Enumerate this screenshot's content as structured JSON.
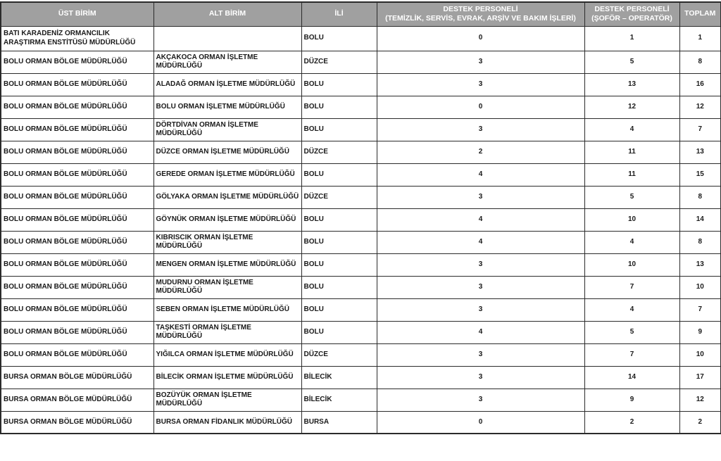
{
  "colors": {
    "header_bg": "#a0a0a0",
    "header_text": "#ffffff",
    "border": "#2b2b2b",
    "row_bg": "#ffffff",
    "body_text": "#1a1a1a"
  },
  "table": {
    "column_keys": [
      "ust-birim",
      "alt-birim",
      "ili",
      "destek-personeli-temizlik",
      "destek-personeli-sofor",
      "toplam"
    ],
    "headers": [
      "ÜST BİRİM",
      "ALT BİRİM",
      "İLİ",
      "DESTEK PERSONELİ\n(TEMİZLİK, SERVİS, EVRAK, ARŞİV VE BAKIM İŞLERİ)",
      "DESTEK PERSONELİ\n(ŞOFÖR – OPERATÖR)",
      "TOPLAM"
    ],
    "rows": [
      [
        "BATI KARADENİZ ORMANCILIK ARAŞTIRMA ENSTİTÜSÜ MÜDÜRLÜĞÜ",
        "",
        "BOLU",
        "0",
        "1",
        "1"
      ],
      [
        "BOLU ORMAN BÖLGE MÜDÜRLÜĞÜ",
        "AKÇAKOCA ORMAN İŞLETME MÜDÜRLÜĞÜ",
        "DÜZCE",
        "3",
        "5",
        "8"
      ],
      [
        "BOLU ORMAN BÖLGE MÜDÜRLÜĞÜ",
        "ALADAĞ ORMAN İŞLETME MÜDÜRLÜĞÜ",
        "BOLU",
        "3",
        "13",
        "16"
      ],
      [
        "BOLU ORMAN BÖLGE MÜDÜRLÜĞÜ",
        "BOLU ORMAN İŞLETME MÜDÜRLÜĞÜ",
        "BOLU",
        "0",
        "12",
        "12"
      ],
      [
        "BOLU ORMAN BÖLGE MÜDÜRLÜĞÜ",
        "DÖRTDİVAN ORMAN İŞLETME MÜDÜRLÜĞÜ",
        "BOLU",
        "3",
        "4",
        "7"
      ],
      [
        "BOLU ORMAN BÖLGE MÜDÜRLÜĞÜ",
        "DÜZCE ORMAN İŞLETME MÜDÜRLÜĞÜ",
        "DÜZCE",
        "2",
        "11",
        "13"
      ],
      [
        "BOLU ORMAN BÖLGE MÜDÜRLÜĞÜ",
        "GEREDE ORMAN İŞLETME MÜDÜRLÜĞÜ",
        "BOLU",
        "4",
        "11",
        "15"
      ],
      [
        "BOLU ORMAN BÖLGE MÜDÜRLÜĞÜ",
        "GÖLYAKA ORMAN İŞLETME MÜDÜRLÜĞÜ",
        "DÜZCE",
        "3",
        "5",
        "8"
      ],
      [
        "BOLU ORMAN BÖLGE MÜDÜRLÜĞÜ",
        "GÖYNÜK ORMAN İŞLETME MÜDÜRLÜĞÜ",
        "BOLU",
        "4",
        "10",
        "14"
      ],
      [
        "BOLU ORMAN BÖLGE MÜDÜRLÜĞÜ",
        "KIBRISCIK ORMAN İŞLETME MÜDÜRLÜĞÜ",
        "BOLU",
        "4",
        "4",
        "8"
      ],
      [
        "BOLU ORMAN BÖLGE MÜDÜRLÜĞÜ",
        "MENGEN ORMAN İŞLETME MÜDÜRLÜĞÜ",
        "BOLU",
        "3",
        "10",
        "13"
      ],
      [
        "BOLU ORMAN BÖLGE MÜDÜRLÜĞÜ",
        "MUDURNU ORMAN İŞLETME MÜDÜRLÜĞÜ",
        "BOLU",
        "3",
        "7",
        "10"
      ],
      [
        "BOLU ORMAN BÖLGE MÜDÜRLÜĞÜ",
        "SEBEN ORMAN İŞLETME MÜDÜRLÜĞÜ",
        "BOLU",
        "3",
        "4",
        "7"
      ],
      [
        "BOLU ORMAN BÖLGE MÜDÜRLÜĞÜ",
        "TAŞKESTİ ORMAN İŞLETME MÜDÜRLÜĞÜ",
        "BOLU",
        "4",
        "5",
        "9"
      ],
      [
        "BOLU ORMAN BÖLGE MÜDÜRLÜĞÜ",
        "YIĞILCA ORMAN İŞLETME MÜDÜRLÜĞÜ",
        "DÜZCE",
        "3",
        "7",
        "10"
      ],
      [
        "BURSA ORMAN BÖLGE MÜDÜRLÜĞÜ",
        "BİLECİK ORMAN İŞLETME MÜDÜRLÜĞÜ",
        "BİLECİK",
        "3",
        "14",
        "17"
      ],
      [
        "BURSA ORMAN BÖLGE MÜDÜRLÜĞÜ",
        "BOZÜYÜK ORMAN İŞLETME MÜDÜRLÜĞÜ",
        "BİLECİK",
        "3",
        "9",
        "12"
      ],
      [
        "BURSA ORMAN BÖLGE MÜDÜRLÜĞÜ",
        "BURSA ORMAN FİDANLIK MÜDÜRLÜĞÜ",
        "BURSA",
        "0",
        "2",
        "2"
      ]
    ]
  }
}
